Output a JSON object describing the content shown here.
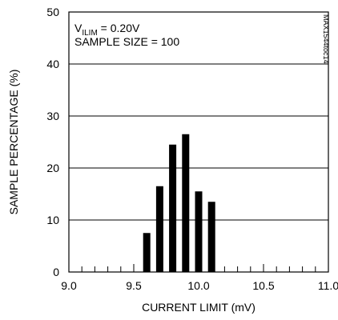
{
  "chart_data": {
    "type": "bar",
    "xlabel": "CURRENT LIMIT (mV)",
    "ylabel": "SAMPLE PERCENTAGE (%)",
    "xlim": [
      9.0,
      11.0
    ],
    "ylim": [
      0,
      50
    ],
    "x_ticks": [
      "9.0",
      "9.5",
      "10.0",
      "10.5",
      "11.0"
    ],
    "y_ticks": [
      "0",
      "10",
      "20",
      "30",
      "40",
      "50"
    ],
    "x_minor_step": 0.1,
    "grid": "horizontal",
    "bar_color": "#000000",
    "x": [
      9.6,
      9.7,
      9.8,
      9.9,
      10.0,
      10.1
    ],
    "values": [
      7.5,
      16.5,
      24.5,
      26.5,
      15.5,
      13.5
    ],
    "annotation": {
      "line1_main": "V",
      "line1_sub": "ILIM",
      "line1_rest": " = 0.20V",
      "line2": "SAMPLE SIZE = 100"
    },
    "side_code": "MAX1544toc14"
  }
}
